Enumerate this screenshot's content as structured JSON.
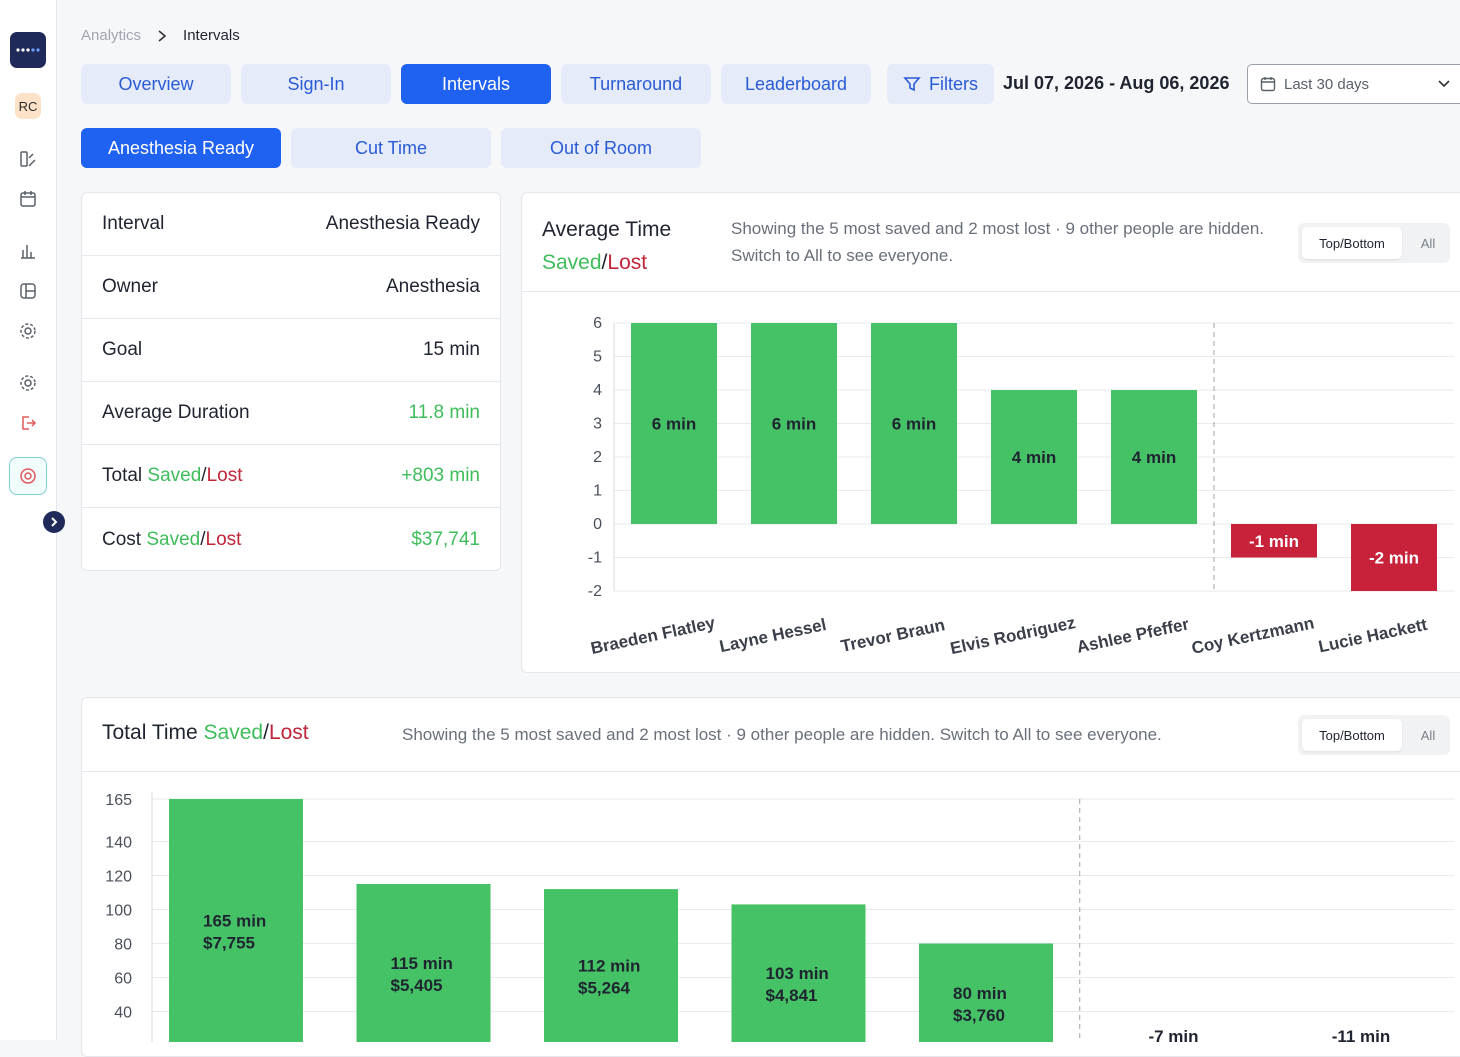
{
  "sidebar": {
    "avatar_initials": "RC"
  },
  "breadcrumb": {
    "parent": "Analytics",
    "current": "Intervals"
  },
  "nav_tabs": [
    "Overview",
    "Sign-In",
    "Intervals",
    "Turnaround",
    "Leaderboard"
  ],
  "filters_label": "Filters",
  "date_range": "Jul 07, 2026 - Aug 06, 2026",
  "period_select": "Last 30 days",
  "interval_tabs": [
    "Anesthesia Ready",
    "Cut Time",
    "Out of Room"
  ],
  "info": {
    "interval_label": "Interval",
    "interval_value": "Anesthesia Ready",
    "owner_label": "Owner",
    "owner_value": "Anesthesia",
    "goal_label": "Goal",
    "goal_value": "15 min",
    "avg_label": "Average Duration",
    "avg_value": "11.8 min",
    "total_label_a": "Total ",
    "total_value": "+803 min",
    "cost_label_a": "Cost ",
    "cost_value": "$37,741",
    "saved": "Saved",
    "slash": "/",
    "lost": "Lost"
  },
  "avg_card": {
    "title_line1": "Average Time",
    "note": "Showing the 5 most saved and 2 most lost · 9 other people are hidden. Switch to All to see everyone.",
    "toggle_on": "Top/Bottom",
    "toggle_off": "All"
  },
  "total_card": {
    "title_a": "Total Time ",
    "note": "Showing the 5 most saved and 2 most lost · 9 other people are hidden. Switch to All to see everyone.",
    "toggle_on": "Top/Bottom",
    "toggle_off": "All"
  },
  "colors": {
    "saved": "#45c266",
    "lost": "#c8213a",
    "accent": "#1f62f2"
  },
  "chart_data": [
    {
      "type": "bar",
      "categories": [
        "Braeden Flatley",
        "Layne Hessel",
        "Trevor Braun",
        "Elvis Rodriguez",
        "Ashlee Pfeffer",
        "Coy Kertzmann",
        "Lucie Hackett"
      ],
      "values": [
        6,
        6,
        6,
        4,
        4,
        -1,
        -2
      ],
      "labels": [
        "6 min",
        "6 min",
        "6 min",
        "4 min",
        "4 min",
        "-1 min",
        "-2 min"
      ],
      "yticks": [
        6,
        5,
        4,
        3,
        2,
        1,
        0,
        -1,
        -2
      ],
      "ylim": [
        -2,
        6
      ],
      "grid": true
    },
    {
      "type": "bar",
      "values": [
        165,
        115,
        112,
        103,
        80,
        -7,
        -11
      ],
      "labels": [
        "165 min",
        "115 min",
        "112 min",
        "103 min",
        "80 min",
        "-7 min",
        "-11 min"
      ],
      "costs": [
        "$7,755",
        "$5,405",
        "$5,264",
        "$4,841",
        "$3,760"
      ],
      "yticks": [
        165,
        140,
        120,
        100,
        80,
        60,
        40
      ],
      "grid": true
    }
  ]
}
